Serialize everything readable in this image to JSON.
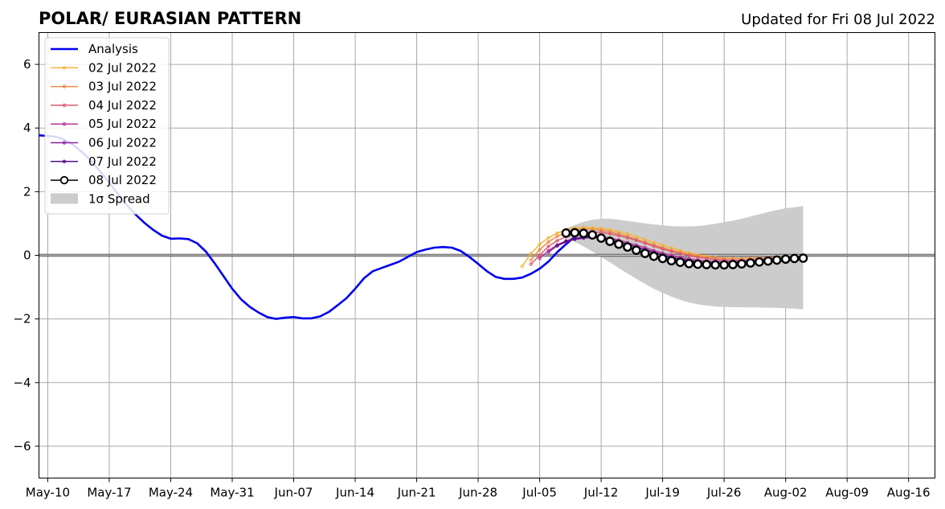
{
  "chart_data": {
    "type": "line",
    "title": "POLAR/ EURASIAN  PATTERN",
    "subtitle": "Updated for Fri 08 Jul 2022",
    "xlabel": "",
    "ylabel": "",
    "xlim": [
      "2022-05-09",
      "2022-08-19"
    ],
    "ylim": [
      -7,
      7
    ],
    "grid": true,
    "legend_position": "top-left",
    "x_ticks": [
      {
        "date": "2022-05-10",
        "label": "May-10"
      },
      {
        "date": "2022-05-17",
        "label": "May-17"
      },
      {
        "date": "2022-05-24",
        "label": "May-24"
      },
      {
        "date": "2022-05-31",
        "label": "May-31"
      },
      {
        "date": "2022-06-07",
        "label": "Jun-07"
      },
      {
        "date": "2022-06-14",
        "label": "Jun-14"
      },
      {
        "date": "2022-06-21",
        "label": "Jun-21"
      },
      {
        "date": "2022-06-28",
        "label": "Jun-28"
      },
      {
        "date": "2022-07-05",
        "label": "Jul-05"
      },
      {
        "date": "2022-07-12",
        "label": "Jul-12"
      },
      {
        "date": "2022-07-19",
        "label": "Jul-19"
      },
      {
        "date": "2022-07-26",
        "label": "Jul-26"
      },
      {
        "date": "2022-08-02",
        "label": "Aug-02"
      },
      {
        "date": "2022-08-09",
        "label": "Aug-09"
      },
      {
        "date": "2022-08-16",
        "label": "Aug-16"
      }
    ],
    "y_ticks": [
      {
        "value": 6,
        "label": "6"
      },
      {
        "value": 4,
        "label": "4"
      },
      {
        "value": 2,
        "label": "2"
      },
      {
        "value": 0,
        "label": "0"
      },
      {
        "value": -2,
        "label": "−2"
      },
      {
        "value": -4,
        "label": "−4"
      },
      {
        "value": -6,
        "label": "−6"
      }
    ],
    "analysis": {
      "name": "Analysis",
      "color": "#0000ee",
      "start_date": "2022-05-09",
      "step_days": 1,
      "values": [
        3.77,
        3.75,
        3.72,
        3.62,
        3.45,
        3.22,
        2.95,
        2.62,
        2.28,
        1.92,
        1.58,
        1.28,
        1.02,
        0.8,
        0.62,
        0.52,
        0.53,
        0.51,
        0.38,
        0.12,
        -0.25,
        -0.65,
        -1.05,
        -1.38,
        -1.62,
        -1.8,
        -1.94,
        -2.0,
        -1.96,
        -1.94,
        -1.98,
        -1.98,
        -1.92,
        -1.78,
        -1.57,
        -1.35,
        -1.05,
        -0.72,
        -0.5,
        -0.4,
        -0.3,
        -0.2,
        -0.05,
        0.1,
        0.18,
        0.24,
        0.26,
        0.24,
        0.14,
        -0.05,
        -0.27,
        -0.5,
        -0.68,
        -0.74,
        -0.74,
        -0.7,
        -0.58,
        -0.42,
        -0.2,
        0.1,
        0.35,
        0.58,
        0.82
      ]
    },
    "spread": {
      "name": "1σ Spread",
      "color": "#cccccc",
      "start_date": "2022-07-08",
      "upper": [
        0.85,
        0.95,
        1.05,
        1.12,
        1.15,
        1.15,
        1.12,
        1.08,
        1.04,
        1.0,
        0.97,
        0.94,
        0.92,
        0.91,
        0.91,
        0.92,
        0.95,
        0.99,
        1.04,
        1.09,
        1.15,
        1.22,
        1.29,
        1.36,
        1.42,
        1.48,
        1.51,
        1.55
      ],
      "lower": [
        0.55,
        0.42,
        0.28,
        0.12,
        -0.05,
        -0.22,
        -0.4,
        -0.57,
        -0.74,
        -0.9,
        -1.05,
        -1.18,
        -1.3,
        -1.4,
        -1.48,
        -1.54,
        -1.58,
        -1.61,
        -1.62,
        -1.63,
        -1.63,
        -1.64,
        -1.64,
        -1.65,
        -1.65,
        -1.66,
        -1.68,
        -1.7
      ]
    },
    "forecasts": [
      {
        "name": "02 Jul 2022",
        "color": "#f5b43c",
        "start_date": "2022-07-03",
        "values": [
          -0.35,
          0.05,
          0.35,
          0.55,
          0.7,
          0.8,
          0.86,
          0.88,
          0.87,
          0.84,
          0.8,
          0.74,
          0.67,
          0.58,
          0.5,
          0.4,
          0.32,
          0.23,
          0.15,
          0.08,
          0.02,
          -0.03,
          -0.07,
          -0.09,
          -0.1,
          -0.1,
          -0.1,
          -0.09,
          -0.08,
          -0.07,
          -0.06
        ]
      },
      {
        "name": "03 Jul 2022",
        "color": "#ef8a46",
        "start_date": "2022-07-04",
        "values": [
          -0.15,
          0.18,
          0.42,
          0.6,
          0.72,
          0.8,
          0.83,
          0.82,
          0.79,
          0.74,
          0.67,
          0.59,
          0.5,
          0.41,
          0.32,
          0.24,
          0.16,
          0.09,
          0.03,
          -0.02,
          -0.06,
          -0.08,
          -0.1,
          -0.1,
          -0.1,
          -0.09,
          -0.08,
          -0.07,
          -0.06
        ]
      },
      {
        "name": "04 Jul 2022",
        "color": "#de5a6e",
        "start_date": "2022-07-04",
        "values": [
          -0.28,
          0.0,
          0.28,
          0.46,
          0.58,
          0.66,
          0.71,
          0.73,
          0.72,
          0.68,
          0.62,
          0.55,
          0.47,
          0.38,
          0.29,
          0.2,
          0.12,
          0.05,
          -0.01,
          -0.06,
          -0.1,
          -0.13,
          -0.15,
          -0.16,
          -0.16,
          -0.15,
          -0.14,
          -0.12,
          -0.1
        ]
      },
      {
        "name": "05 Jul 2022",
        "color": "#b8399a",
        "start_date": "2022-07-05",
        "values": [
          -0.1,
          0.15,
          0.33,
          0.45,
          0.53,
          0.58,
          0.6,
          0.58,
          0.54,
          0.48,
          0.4,
          0.32,
          0.24,
          0.15,
          0.07,
          0.0,
          -0.06,
          -0.11,
          -0.15,
          -0.18,
          -0.19,
          -0.2,
          -0.2,
          -0.19,
          -0.17,
          -0.15,
          -0.12
        ]
      },
      {
        "name": "06 Jul 2022",
        "color": "#8a1fa0",
        "start_date": "2022-07-06",
        "values": [
          0.1,
          0.3,
          0.42,
          0.5,
          0.54,
          0.56,
          0.55,
          0.5,
          0.43,
          0.35,
          0.27,
          0.18,
          0.1,
          0.02,
          -0.05,
          -0.11,
          -0.16,
          -0.2,
          -0.23,
          -0.24,
          -0.25,
          -0.24,
          -0.23,
          -0.21,
          -0.18,
          -0.15
        ]
      },
      {
        "name": "07 Jul 2022",
        "color": "#4b0f8c",
        "start_date": "2022-07-07",
        "values": [
          0.3,
          0.45,
          0.52,
          0.56,
          0.57,
          0.55,
          0.5,
          0.43,
          0.35,
          0.26,
          0.17,
          0.08,
          0.0,
          -0.07,
          -0.13,
          -0.18,
          -0.22,
          -0.25,
          -0.27,
          -0.28,
          -0.27,
          -0.25,
          -0.22,
          -0.19,
          -0.16
        ]
      },
      {
        "name": "08 Jul 2022",
        "color": "#000000",
        "start_date": "2022-07-08",
        "values": [
          0.7,
          0.71,
          0.69,
          0.64,
          0.54,
          0.44,
          0.35,
          0.26,
          0.16,
          0.06,
          -0.03,
          -0.1,
          -0.17,
          -0.22,
          -0.26,
          -0.28,
          -0.29,
          -0.3,
          -0.3,
          -0.29,
          -0.27,
          -0.24,
          -0.21,
          -0.18,
          -0.15,
          -0.12,
          -0.1,
          -0.09
        ]
      }
    ]
  }
}
